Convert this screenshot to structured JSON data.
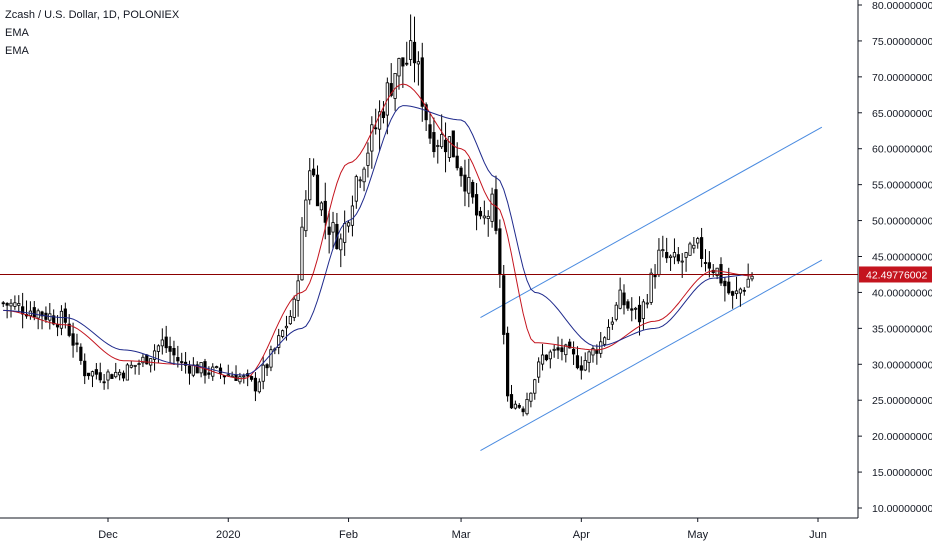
{
  "legend": {
    "title": "Zcash / U.S. Dollar, 1D, POLONIEX",
    "indicators": [
      "EMA",
      "EMA"
    ]
  },
  "price_label": "42.49776002",
  "colors": {
    "background": "#ffffff",
    "candle": "#000000",
    "ema_fast": "#c4141e",
    "ema_slow": "#1f2a8c",
    "price_line": "#8b0000",
    "price_label_bg": "#c4141e",
    "channel": "#4a8be0",
    "axis_text": "#131722",
    "axis_line": "#131722"
  },
  "chart_data": {
    "type": "candlestick",
    "title": "Zcash / U.S. Dollar, 1D, POLONIEX",
    "ylim": [
      9,
      81
    ],
    "y_ticks": [
      "10.00000000",
      "15.00000000",
      "20.00000000",
      "25.00000000",
      "30.00000000",
      "35.00000000",
      "40.00000000",
      "45.00000000",
      "50.00000000",
      "55.00000000",
      "60.00000000",
      "65.00000000",
      "70.00000000",
      "75.00000000",
      "80.00000000"
    ],
    "y_tick_values": [
      10,
      15,
      20,
      25,
      30,
      35,
      40,
      45,
      50,
      55,
      60,
      65,
      70,
      75,
      80
    ],
    "x_ticks": [
      "Dec",
      "2020",
      "Feb",
      "Mar",
      "Apr",
      "May",
      "Jun"
    ],
    "x_tick_dates": [
      "2019-12-01",
      "2020-01-01",
      "2020-02-01",
      "2020-03-01",
      "2020-04-01",
      "2020-05-01",
      "2020-06-01"
    ],
    "x_start": "2019-11-04",
    "x_end": "2020-06-15",
    "last_price": 42.49776002,
    "series": [
      {
        "name": "EMA",
        "type": "line",
        "dates": [
          "2019-11-04",
          "2019-11-20",
          "2019-12-05",
          "2019-12-20",
          "2020-01-05",
          "2020-01-20",
          "2020-02-01",
          "2020-02-15",
          "2020-03-01",
          "2020-03-10",
          "2020-03-20",
          "2020-04-05",
          "2020-04-20",
          "2020-05-05",
          "2020-05-15"
        ],
        "values": [
          37.5,
          35.5,
          30.5,
          30.0,
          28.0,
          40.0,
          58.0,
          69.0,
          60.0,
          52.0,
          33.0,
          32.0,
          36.0,
          43.0,
          42.3
        ]
      },
      {
        "name": "EMA",
        "type": "line",
        "dates": [
          "2019-11-04",
          "2019-11-20",
          "2019-12-05",
          "2019-12-20",
          "2020-01-05",
          "2020-01-20",
          "2020-02-01",
          "2020-02-15",
          "2020-03-01",
          "2020-03-10",
          "2020-03-20",
          "2020-04-05",
          "2020-04-20",
          "2020-05-05",
          "2020-05-15"
        ],
        "values": [
          37.5,
          36.5,
          32.0,
          30.0,
          28.5,
          35.0,
          50.0,
          66.0,
          64.0,
          56.0,
          40.0,
          32.5,
          35.0,
          42.0,
          42.5
        ]
      }
    ],
    "channel": {
      "upper": [
        {
          "date": "2020-03-06",
          "value": 36.5
        },
        {
          "date": "2020-06-02",
          "value": 63.0
        }
      ],
      "lower": [
        {
          "date": "2020-03-06",
          "value": 18.0
        },
        {
          "date": "2020-06-02",
          "value": 44.5
        }
      ]
    },
    "ohlc_anchors": [
      [
        "2019-11-04",
        38.5
      ],
      [
        "2019-11-12",
        37.5
      ],
      [
        "2019-11-20",
        36.0
      ],
      [
        "2019-11-25",
        29.0
      ],
      [
        "2019-11-30",
        28.5
      ],
      [
        "2019-12-05",
        29.0
      ],
      [
        "2019-12-10",
        30.5
      ],
      [
        "2019-12-15",
        33.0
      ],
      [
        "2019-12-20",
        30.0
      ],
      [
        "2019-12-27",
        29.0
      ],
      [
        "2020-01-03",
        28.5
      ],
      [
        "2020-01-08",
        27.0
      ],
      [
        "2020-01-13",
        32.0
      ],
      [
        "2020-01-18",
        38.0
      ],
      [
        "2020-01-22",
        58.0
      ],
      [
        "2020-01-26",
        50.0
      ],
      [
        "2020-01-30",
        47.0
      ],
      [
        "2020-02-03",
        56.0
      ],
      [
        "2020-02-08",
        63.0
      ],
      [
        "2020-02-13",
        71.0
      ],
      [
        "2020-02-18",
        73.0
      ],
      [
        "2020-02-22",
        62.0
      ],
      [
        "2020-02-27",
        61.0
      ],
      [
        "2020-03-02",
        56.0
      ],
      [
        "2020-03-06",
        49.0
      ],
      [
        "2020-03-09",
        52.0
      ],
      [
        "2020-03-11",
        43.0
      ],
      [
        "2020-03-13",
        25.0
      ],
      [
        "2020-03-17",
        24.0
      ],
      [
        "2020-03-22",
        31.0
      ],
      [
        "2020-03-27",
        32.0
      ],
      [
        "2020-04-01",
        30.0
      ],
      [
        "2020-04-06",
        33.0
      ],
      [
        "2020-04-11",
        39.0
      ],
      [
        "2020-04-16",
        36.5
      ],
      [
        "2020-04-21",
        45.0
      ],
      [
        "2020-04-26",
        44.0
      ],
      [
        "2020-05-01",
        46.0
      ],
      [
        "2020-05-06",
        43.0
      ],
      [
        "2020-05-10",
        39.0
      ],
      [
        "2020-05-15",
        42.5
      ]
    ]
  }
}
